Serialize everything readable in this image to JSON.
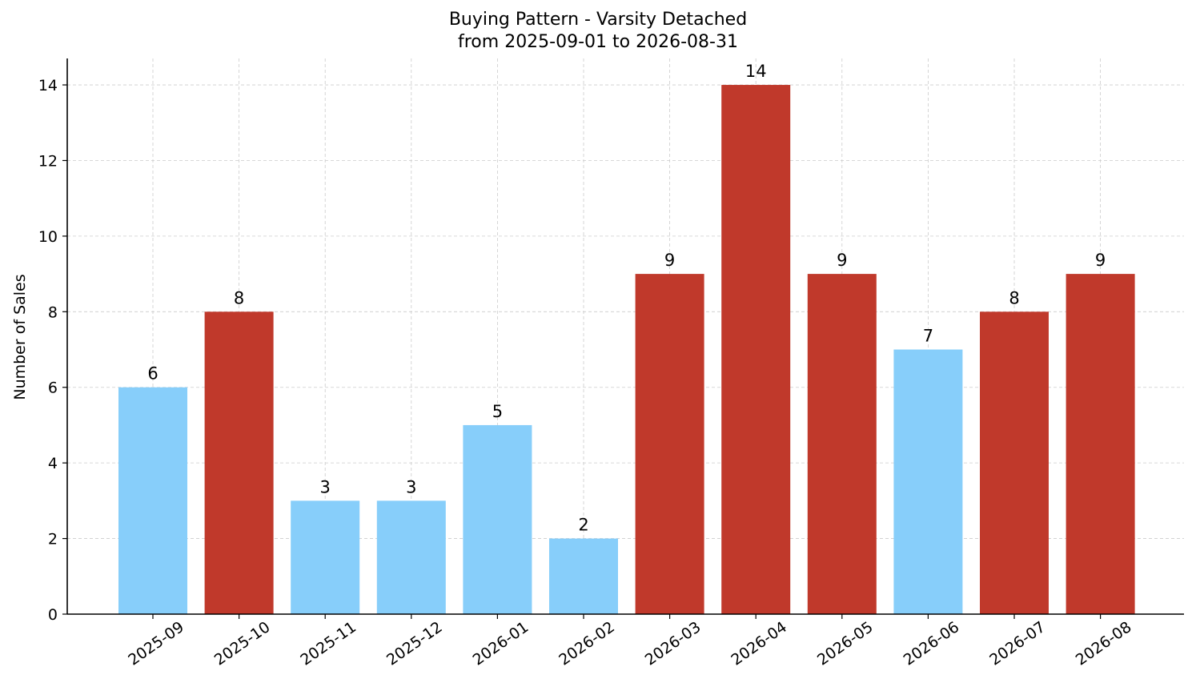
{
  "chart_data": {
    "type": "bar",
    "title": "Buying Pattern - Varsity Detached",
    "subtitle": "from 2025-09-01 to 2026-08-31",
    "xlabel": "",
    "ylabel": "Number of Sales",
    "categories": [
      "2025-09",
      "2025-10",
      "2025-11",
      "2025-12",
      "2026-01",
      "2026-02",
      "2026-03",
      "2026-04",
      "2026-05",
      "2026-06",
      "2026-07",
      "2026-08"
    ],
    "values": [
      6,
      8,
      3,
      3,
      5,
      2,
      9,
      14,
      9,
      7,
      8,
      9
    ],
    "bar_colors": [
      "#87CEFA",
      "#C0392B",
      "#87CEFA",
      "#87CEFA",
      "#87CEFA",
      "#87CEFA",
      "#C0392B",
      "#C0392B",
      "#C0392B",
      "#87CEFA",
      "#C0392B",
      "#C0392B"
    ],
    "ylim": [
      0,
      14.7
    ],
    "yticks": [
      0,
      2,
      4,
      6,
      8,
      10,
      12,
      14
    ],
    "grid": true,
    "data_labels": true,
    "legend": "none"
  }
}
